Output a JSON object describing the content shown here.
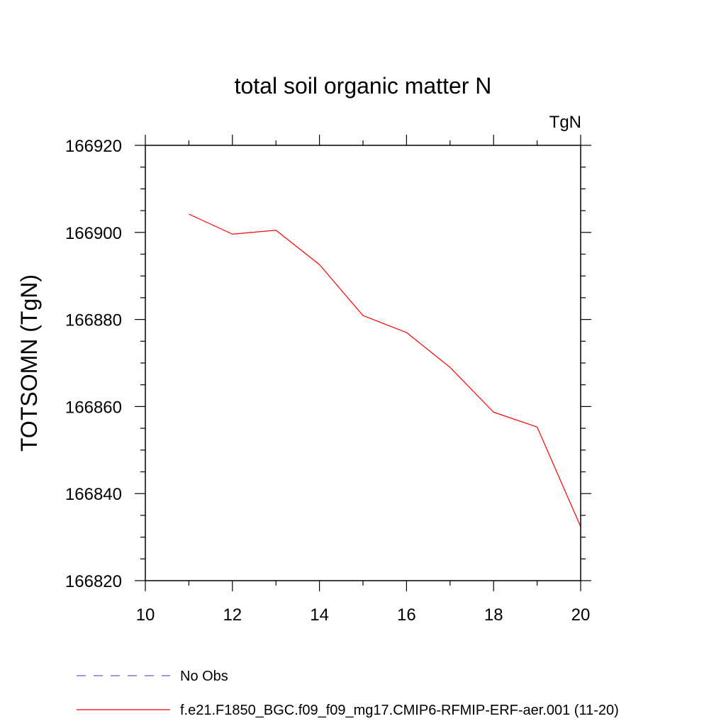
{
  "chart_data": {
    "type": "line",
    "title": "total soil organic matter N",
    "units_label": "TgN",
    "xlabel": "",
    "ylabel": "TOTSOMN  (TgN)",
    "xlim": [
      10,
      20
    ],
    "ylim": [
      166820,
      166920
    ],
    "x_ticks": [
      10,
      12,
      14,
      16,
      18,
      20
    ],
    "y_ticks": [
      166820,
      166840,
      166860,
      166880,
      166900,
      166920
    ],
    "x_tick_labels": [
      "10",
      "12",
      "14",
      "16",
      "18",
      "20"
    ],
    "y_tick_labels": [
      "166820",
      "166840",
      "166860",
      "166880",
      "166900",
      "166920"
    ],
    "x_minor_step": 1,
    "y_minor_step": 5,
    "grid": false,
    "series": [
      {
        "name": "f.e21.F1850_BGC.f09_f09_mg17.CMIP6-RFMIP-ERF-aer.001 (11-20)",
        "color": "#ff0000",
        "style": "solid",
        "x": [
          11,
          12,
          13,
          14,
          15,
          16,
          17,
          18,
          19,
          20
        ],
        "values": [
          166904.2,
          166899.6,
          166900.5,
          166892.6,
          166880.9,
          166877.0,
          166869.0,
          166858.7,
          166855.3,
          166832.4
        ]
      }
    ],
    "legend": {
      "placement": "bottom",
      "entries": [
        {
          "label": "No Obs",
          "color": "#6a5acd",
          "style": "dashed"
        },
        {
          "label": "f.e21.F1850_BGC.f09_f09_mg17.CMIP6-RFMIP-ERF-aer.001 (11-20)",
          "color": "#ff0000",
          "style": "solid"
        }
      ]
    }
  }
}
